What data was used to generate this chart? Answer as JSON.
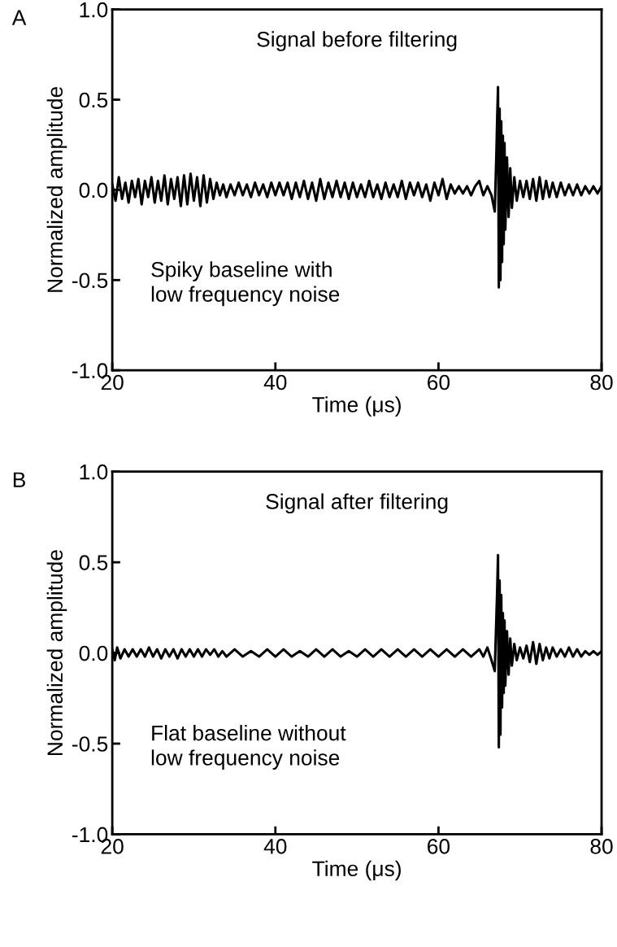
{
  "chart_data": [
    {
      "type": "line",
      "title": "Signal before filtering",
      "xlabel": "Time (μs)",
      "ylabel": "Normalized amplitude",
      "xlim": [
        20,
        80
      ],
      "ylim": [
        -1.0,
        1.0
      ],
      "xticks": [
        20,
        40,
        60,
        80
      ],
      "yticks": [
        {
          "value": -1.0,
          "label": "-1.0"
        },
        {
          "value": -0.5,
          "label": "-0.5"
        },
        {
          "value": 0.0,
          "label": "0.0"
        },
        {
          "value": 0.5,
          "label": "0.5"
        },
        {
          "value": 1.0,
          "label": "1.0"
        }
      ],
      "grid": false,
      "legend": false,
      "annotations": [
        "A",
        "Spiky baseline with\nlow frequency noise"
      ],
      "series": [
        {
          "color": "#000000",
          "x": [
            20,
            20.4,
            20.8,
            21.2,
            21.6,
            22,
            22.4,
            22.8,
            23.2,
            23.6,
            24,
            24.4,
            24.8,
            25.2,
            25.6,
            26,
            26.4,
            26.8,
            27.2,
            27.6,
            28,
            28.4,
            28.8,
            29.2,
            29.6,
            30,
            30.4,
            30.8,
            31.2,
            31.6,
            32,
            32.4,
            32.8,
            33.2,
            33.6,
            34,
            34.5,
            35,
            35.5,
            36,
            36.5,
            37,
            37.5,
            38,
            38.5,
            39,
            39.5,
            40,
            40.5,
            41,
            41.5,
            42,
            42.5,
            43,
            43.5,
            44,
            44.5,
            45,
            45.5,
            46,
            46.5,
            47,
            47.5,
            48,
            48.5,
            49,
            49.5,
            50,
            50.5,
            51,
            51.5,
            52,
            52.5,
            53,
            53.5,
            54,
            54.5,
            55,
            55.5,
            56,
            56.5,
            57,
            57.5,
            58,
            58.5,
            59,
            59.5,
            60,
            60.5,
            61,
            61.5,
            62,
            62.5,
            63,
            63.5,
            64,
            64.5,
            65,
            65.5,
            66,
            66.5,
            66.9,
            67.1,
            67.2,
            67.3,
            67.4,
            67.5,
            67.6,
            67.7,
            67.8,
            67.9,
            68,
            68.1,
            68.2,
            68.4,
            68.6,
            68.8,
            69,
            69.3,
            69.6,
            70,
            70.4,
            70.8,
            71.2,
            71.6,
            72,
            72.4,
            72.8,
            73.2,
            73.6,
            74,
            74.5,
            75,
            75.5,
            76,
            76.5,
            77,
            77.5,
            78,
            78.5,
            79,
            79.5,
            80
          ],
          "values": [
            0.03,
            -0.06,
            0.07,
            -0.05,
            0.04,
            -0.07,
            0.05,
            -0.04,
            0.06,
            -0.08,
            0.05,
            -0.04,
            0.07,
            -0.07,
            0.05,
            -0.06,
            0.08,
            -0.08,
            0.06,
            -0.05,
            0.07,
            -0.09,
            0.08,
            -0.08,
            0.09,
            -0.06,
            0.07,
            -0.09,
            0.08,
            -0.07,
            0.06,
            -0.05,
            0.04,
            -0.03,
            0.03,
            -0.04,
            0.03,
            -0.03,
            0.04,
            -0.03,
            0.03,
            -0.04,
            0.04,
            -0.03,
            0.03,
            -0.04,
            0.04,
            -0.03,
            0.04,
            -0.03,
            0.04,
            -0.05,
            0.04,
            -0.04,
            0.05,
            -0.05,
            0.04,
            -0.06,
            0.06,
            -0.05,
            0.04,
            -0.04,
            0.05,
            -0.04,
            0.04,
            -0.05,
            0.04,
            -0.04,
            0.03,
            -0.04,
            0.05,
            -0.04,
            0.03,
            -0.05,
            0.04,
            -0.04,
            0.03,
            -0.04,
            0.05,
            -0.05,
            0.04,
            -0.03,
            0.04,
            -0.04,
            0.03,
            -0.06,
            0.04,
            -0.03,
            0.06,
            -0.05,
            0.03,
            -0.02,
            0.02,
            -0.02,
            0.02,
            -0.03,
            0.02,
            0.05,
            -0.03,
            0.02,
            -0.03,
            -0.12,
            0.2,
            0.4,
            0.57,
            -0.54,
            0.45,
            -0.5,
            0.38,
            -0.4,
            0.3,
            -0.3,
            0.26,
            -0.22,
            0.18,
            -0.15,
            0.12,
            -0.1,
            0.07,
            -0.06,
            0.05,
            -0.04,
            0.05,
            -0.05,
            0.06,
            -0.06,
            0.07,
            -0.05,
            0.05,
            -0.04,
            0.04,
            -0.04,
            0.04,
            -0.03,
            0.03,
            -0.03,
            0.03,
            -0.03,
            0.02,
            -0.02,
            0.02,
            -0.02,
            0.02
          ]
        }
      ]
    },
    {
      "type": "line",
      "title": "Signal after filtering",
      "xlabel": "Time (μs)",
      "ylabel": "Normalized amplitude",
      "xlim": [
        20,
        80
      ],
      "ylim": [
        -1.0,
        1.0
      ],
      "xticks": [
        20,
        40,
        60,
        80
      ],
      "yticks": [
        {
          "value": -1.0,
          "label": "-1.0"
        },
        {
          "value": -0.5,
          "label": "-0.5"
        },
        {
          "value": 0.0,
          "label": "0.0"
        },
        {
          "value": 0.5,
          "label": "0.5"
        },
        {
          "value": 1.0,
          "label": "1.0"
        }
      ],
      "grid": false,
      "legend": false,
      "annotations": [
        "B",
        "Flat baseline without\nlow frequency noise"
      ],
      "series": [
        {
          "color": "#000000",
          "x": [
            20,
            20.3,
            20.6,
            21,
            21.5,
            22,
            22.5,
            23,
            23.5,
            24,
            24.5,
            25,
            25.5,
            26,
            26.5,
            27,
            27.5,
            28,
            28.5,
            29,
            29.5,
            30,
            30.5,
            31,
            31.5,
            32,
            32.5,
            33,
            33.5,
            34,
            35,
            36,
            37,
            38,
            39,
            40,
            41,
            42,
            43,
            44,
            45,
            46,
            47,
            48,
            49,
            50,
            51,
            52,
            53,
            54,
            55,
            56,
            57,
            58,
            59,
            60,
            61,
            62,
            63,
            64,
            65,
            65.5,
            66,
            66.5,
            66.9,
            67.1,
            67.2,
            67.3,
            67.4,
            67.5,
            67.6,
            67.7,
            67.8,
            67.9,
            68,
            68.1,
            68.2,
            68.4,
            68.6,
            68.8,
            69,
            69.3,
            69.6,
            70,
            70.4,
            70.8,
            71.2,
            71.6,
            72,
            72.4,
            72.8,
            73.2,
            73.6,
            74,
            74.5,
            75,
            75.5,
            76,
            76.5,
            77,
            77.5,
            78,
            78.5,
            79,
            79.5,
            80
          ],
          "values": [
            0.02,
            -0.04,
            0.03,
            -0.03,
            0.02,
            -0.02,
            0.02,
            -0.02,
            0.02,
            -0.02,
            0.03,
            -0.02,
            0.02,
            -0.03,
            0.02,
            -0.02,
            0.02,
            -0.03,
            0.02,
            -0.02,
            0.02,
            -0.02,
            0.02,
            -0.02,
            0.02,
            -0.01,
            0.02,
            -0.02,
            0.01,
            -0.02,
            0.02,
            -0.02,
            0.01,
            -0.02,
            0.02,
            -0.02,
            0.02,
            -0.02,
            0.01,
            -0.02,
            0.02,
            -0.02,
            0.02,
            -0.02,
            0.01,
            -0.02,
            0.02,
            -0.02,
            0.02,
            -0.02,
            0.02,
            -0.02,
            0.02,
            -0.02,
            0.02,
            -0.02,
            0.02,
            -0.02,
            0.02,
            -0.02,
            0.02,
            -0.02,
            0.03,
            -0.04,
            -0.1,
            0.2,
            0.35,
            0.54,
            -0.52,
            0.4,
            -0.45,
            0.32,
            -0.3,
            0.22,
            -0.22,
            0.18,
            -0.18,
            0.12,
            -0.12,
            0.08,
            -0.07,
            0.05,
            -0.04,
            0.03,
            -0.03,
            0.04,
            -0.05,
            0.06,
            -0.06,
            0.05,
            -0.04,
            0.03,
            -0.03,
            0.03,
            -0.02,
            0.02,
            -0.02,
            0.03,
            -0.02,
            0.02,
            -0.02,
            0.01,
            -0.01,
            0.01,
            -0.01,
            0.01
          ]
        }
      ]
    }
  ]
}
